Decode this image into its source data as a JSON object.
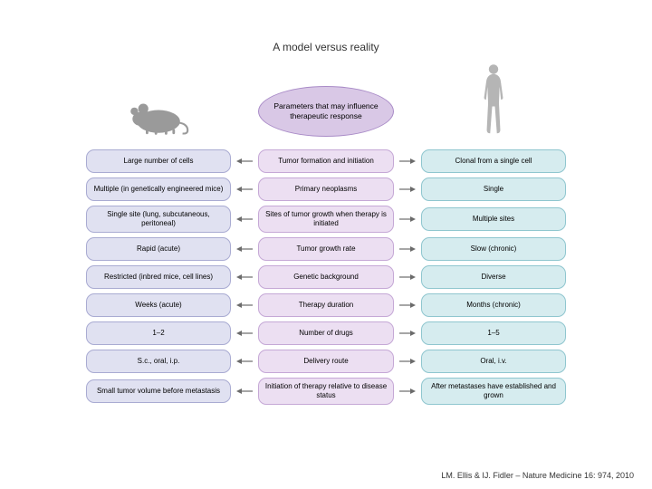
{
  "type": "infographic",
  "background_color": "#ffffff",
  "title": "A model versus reality",
  "title_fontsize": 12,
  "center_oval": {
    "text": "Parameters that may influence therapeutic response",
    "fill": "#d9c8e6",
    "stroke": "#a98bc7",
    "width": 150,
    "height": 56
  },
  "columns": {
    "left": {
      "fill": "#e0e1f1",
      "stroke": "#a9abd2",
      "icon": "mouse",
      "icon_color": "#9a9a9a"
    },
    "mid": {
      "fill": "#ecdff2",
      "stroke": "#c5a8d6"
    },
    "right": {
      "fill": "#d6ecef",
      "stroke": "#8fc6cf",
      "icon": "human",
      "icon_color": "#b5b5b5"
    }
  },
  "arrow": {
    "color": "#6b6b6b",
    "length": 18
  },
  "cell_fontsize": 8,
  "cell_radius": 9,
  "rows": [
    {
      "left": "Large number of cells",
      "mid": "Tumor formation and initiation",
      "right": "Clonal from a single cell"
    },
    {
      "left": "Multiple (in genetically engineered mice)",
      "mid": "Primary neoplasms",
      "right": "Single"
    },
    {
      "left": "Single site (lung, subcutaneous, peritoneal)",
      "mid": "Sites of tumor growth when therapy is initiated",
      "right": "Multiple sites"
    },
    {
      "left": "Rapid (acute)",
      "mid": "Tumor growth rate",
      "right": "Slow (chronic)"
    },
    {
      "left": "Restricted (inbred mice, cell lines)",
      "mid": "Genetic background",
      "right": "Diverse"
    },
    {
      "left": "Weeks (acute)",
      "mid": "Therapy duration",
      "right": "Months (chronic)"
    },
    {
      "left": "1–2",
      "mid": "Number of drugs",
      "right": "1–5"
    },
    {
      "left": "S.c., oral, i.p.",
      "mid": "Delivery route",
      "right": "Oral, i.v."
    },
    {
      "left": "Small tumor volume before metastasis",
      "mid": "Initiation of therapy relative to disease status",
      "right": "After metastases have established and grown"
    }
  ],
  "citation": "LM. Ellis & IJ. Fidler – Nature Medicine 16: 974, 2010"
}
